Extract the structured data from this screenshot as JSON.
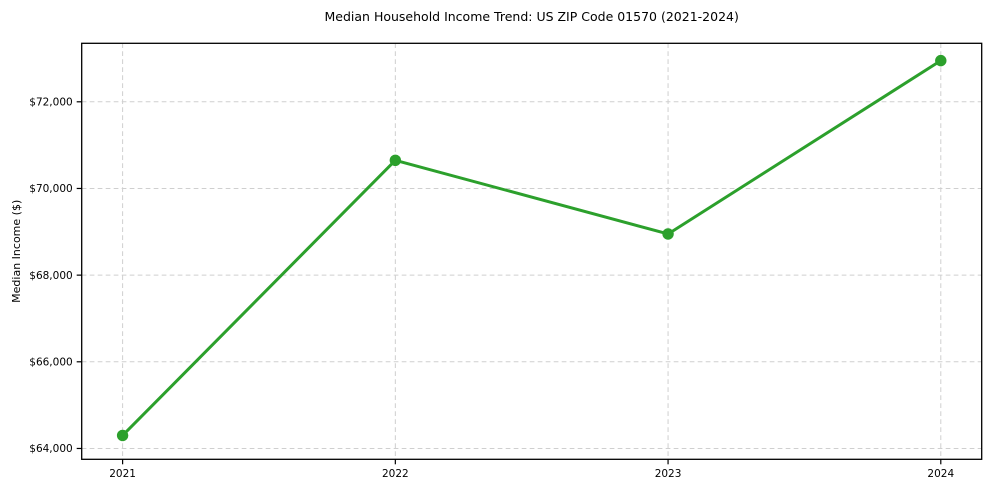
{
  "figure": {
    "background": "#ffffff"
  },
  "chart_data": {
    "type": "line",
    "title": "Median Household Income Trend: US ZIP Code 01570 (2021-2024)",
    "xlabel": "",
    "ylabel": "Median Income ($)",
    "categories": [
      "2021",
      "2022",
      "2023",
      "2024"
    ],
    "x": [
      2021,
      2022,
      2023,
      2024
    ],
    "series": [
      {
        "name": "median-household-income",
        "values": [
          64300,
          70650,
          68950,
          72950
        ],
        "color": "#2ca02c",
        "marker": "circle",
        "marker_radius": 5.7,
        "line_width": 3
      }
    ],
    "yticks": [
      64000,
      66000,
      68000,
      70000,
      72000
    ],
    "ytick_labels": [
      "$64,000",
      "$66,000",
      "$68,000",
      "$70,000",
      "$72,000"
    ],
    "ylim": [
      63750,
      73350
    ],
    "xlim": [
      2020.85,
      2024.15
    ],
    "grid": true,
    "grid_style": "dashed",
    "grid_color": "#cfcfcf",
    "axis_color": "#000000",
    "text_color": "#000000",
    "legend_position": "none"
  }
}
